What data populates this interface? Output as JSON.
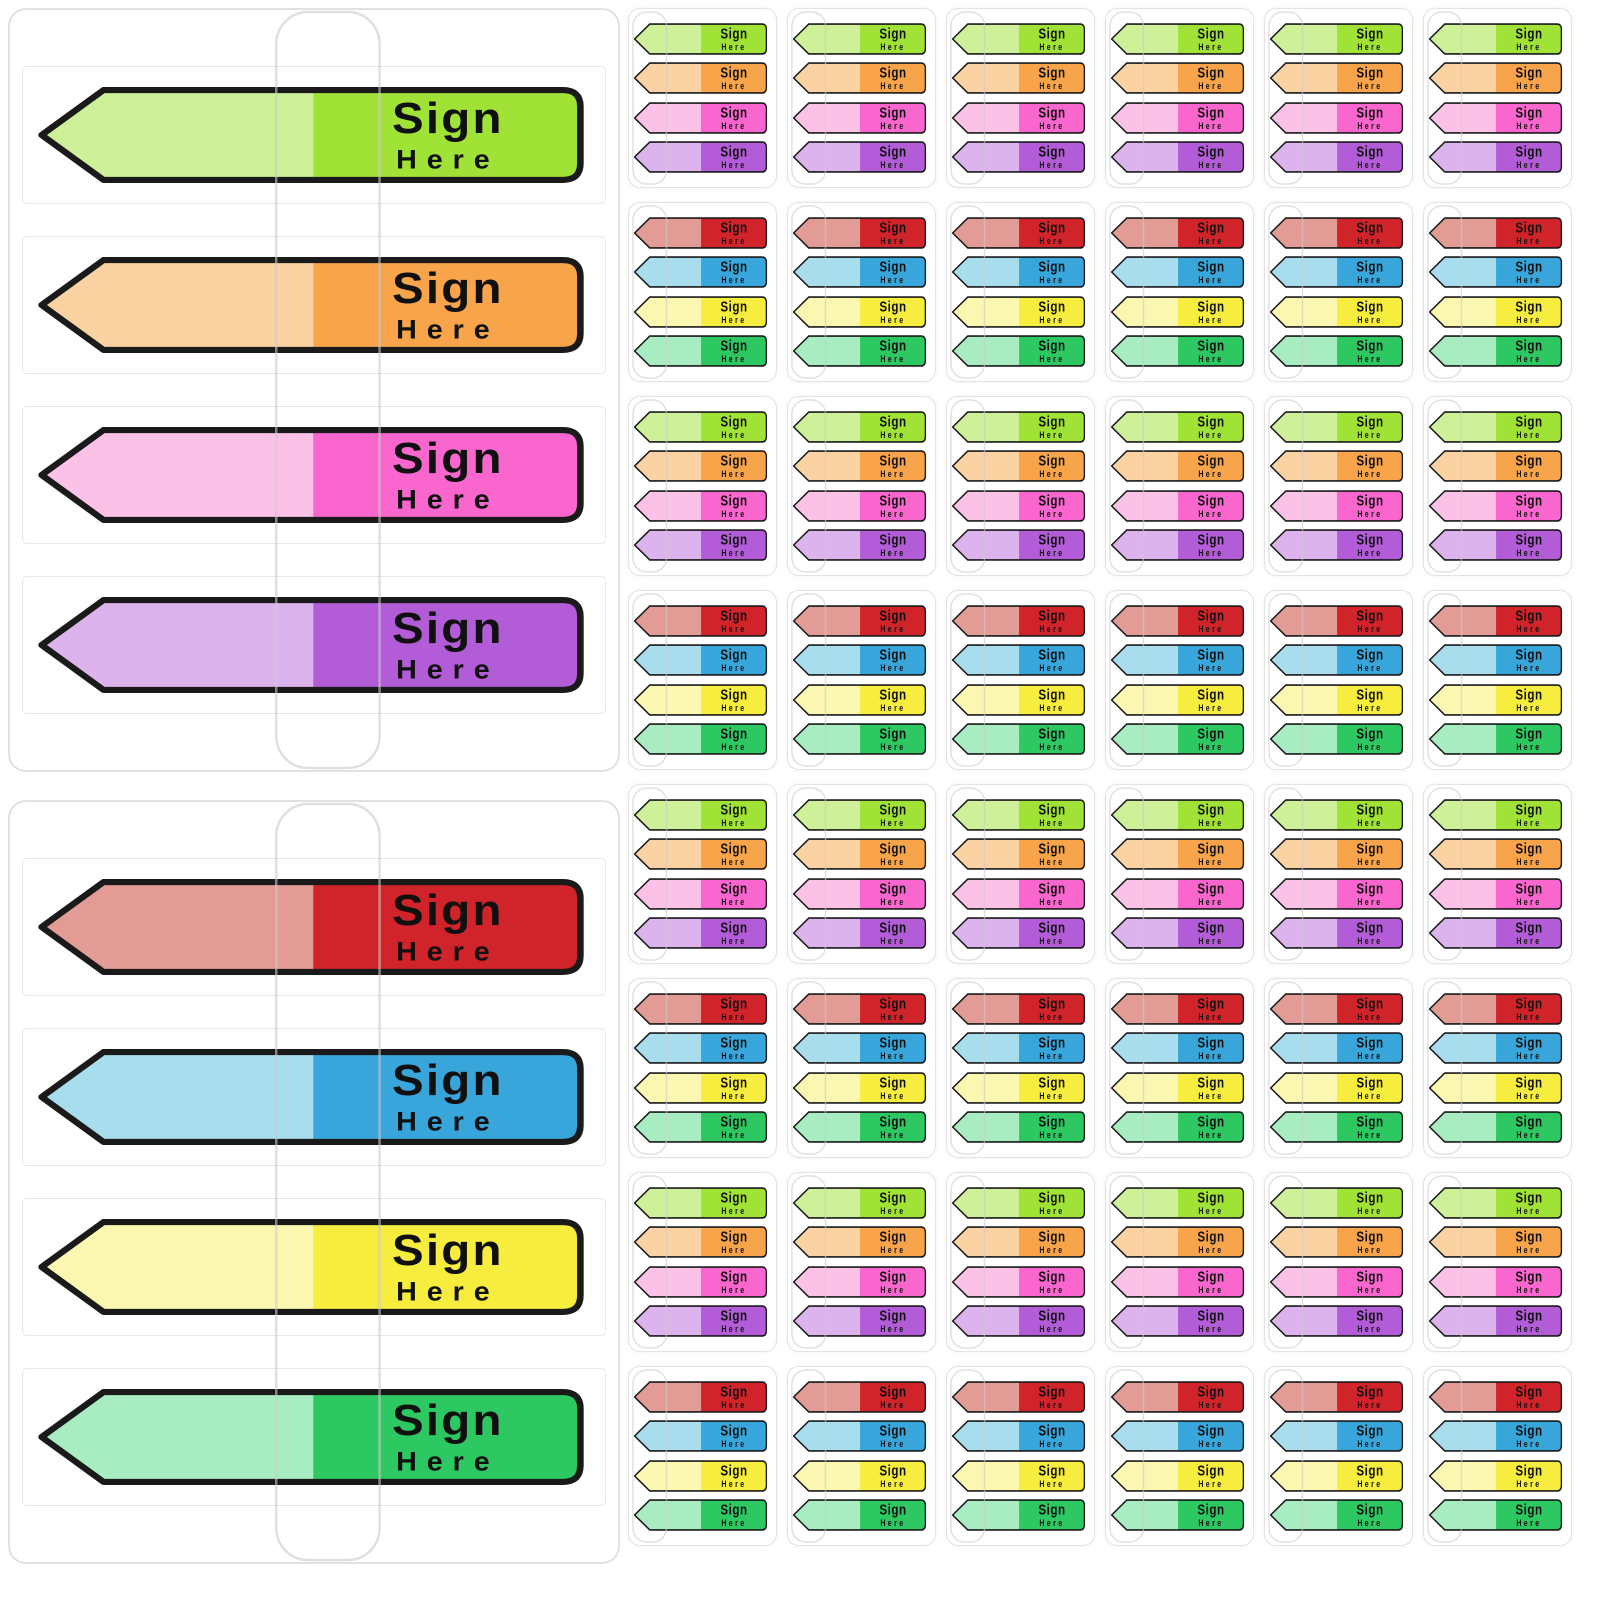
{
  "product": {
    "flag_label": {
      "line1": "Sign",
      "line2": "Here"
    }
  },
  "colors": {
    "outline": "#1a1a1a",
    "text": "#101010",
    "panel_border": "#e1e1e1",
    "cover_line": "#cccccc"
  },
  "flag_sets": [
    {
      "id": "set-a",
      "flags": [
        {
          "name": "green",
          "solid": "#a0e236",
          "light": "#cdf099"
        },
        {
          "name": "orange",
          "solid": "#f7a44b",
          "light": "#fbd3a3"
        },
        {
          "name": "pink",
          "solid": "#f966cd",
          "light": "#fcc1e7"
        },
        {
          "name": "purple",
          "solid": "#b35cd7",
          "light": "#dcb3ec"
        }
      ]
    },
    {
      "id": "set-b",
      "flags": [
        {
          "name": "red",
          "solid": "#d0232a",
          "light": "#e29b95"
        },
        {
          "name": "blue",
          "solid": "#38a5db",
          "light": "#a8ddee"
        },
        {
          "name": "yellow",
          "solid": "#f7ed3e",
          "light": "#fbf7b0"
        },
        {
          "name": "green",
          "solid": "#2ec863",
          "light": "#a8edc2"
        }
      ]
    }
  ],
  "large_panels": [
    {
      "set_index": 0
    },
    {
      "set_index": 1
    }
  ],
  "grid": {
    "columns": 6,
    "rows": [
      {
        "set_index": 0
      },
      {
        "set_index": 1
      },
      {
        "set_index": 0
      },
      {
        "set_index": 1
      },
      {
        "set_index": 0
      },
      {
        "set_index": 1
      },
      {
        "set_index": 0
      },
      {
        "set_index": 1
      }
    ]
  }
}
